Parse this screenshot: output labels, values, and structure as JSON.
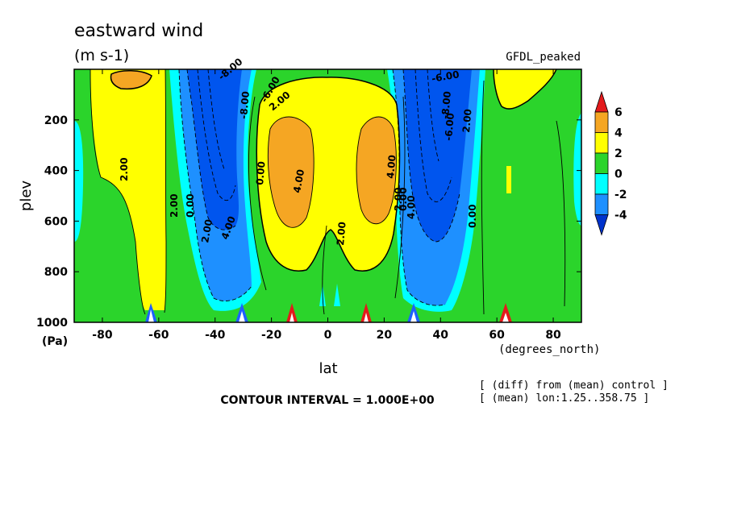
{
  "chart_data": {
    "type": "heatmap",
    "title": "eastward wind",
    "units": "(m s-1)",
    "model_label": "GFDL_peaked",
    "xlabel": "lat",
    "x_units": "(degrees_north)",
    "ylabel": "plev",
    "y_units": "(Pa)",
    "xlim": [
      -90,
      90
    ],
    "ylim": [
      1000,
      0
    ],
    "x_ticks": [
      "-80",
      "-60",
      "-40",
      "-20",
      "0",
      "20",
      "40",
      "60",
      "80"
    ],
    "y_ticks": [
      "200",
      "400",
      "600",
      "800",
      "1000"
    ],
    "contour_interval_text": "CONTOUR INTERVAL = 1.000E+00",
    "notes": [
      "[ (diff) from (mean) control ]",
      "[ (mean) lon:1.25..358.75 ]"
    ],
    "colorbar": {
      "levels": [
        "6",
        "4",
        "2",
        "0",
        "-2",
        "-4"
      ],
      "colors": [
        "#e31a1c",
        "#f5a623",
        "#ffff00",
        "#2bd42b",
        "#00ffff",
        "#1e90ff",
        "#0033cc"
      ]
    },
    "contour_labels": [
      "2.00",
      "2.00",
      "0.00",
      "2.00",
      "4.00",
      "-8.00",
      "-8.00",
      "-6.00",
      "2.00",
      "0.00",
      "4.00",
      "2.00",
      "4.00",
      "2.00",
      "0.00",
      "4.00",
      "-6.00",
      "-8.00",
      "-6.00",
      "2.00",
      "0.00"
    ],
    "features": [
      {
        "name": "southern high-latitude westerly maximum",
        "lat": -68,
        "plev": 80,
        "value": 4
      },
      {
        "name": "southern subtropical westerly maximum",
        "lat": -17,
        "plev": 330,
        "value": 5
      },
      {
        "name": "northern subtropical westerly maximum",
        "lat": 18,
        "plev": 330,
        "value": 5
      },
      {
        "name": "southern midlatitude easterly minimum",
        "lat": -36,
        "plev": 200,
        "value": -8
      },
      {
        "name": "northern midlatitude easterly minimum",
        "lat": 42,
        "plev": 200,
        "value": -8
      },
      {
        "name": "northern high-latitude westerly maximum",
        "lat": 68,
        "plev": 80,
        "value": 3
      }
    ]
  }
}
